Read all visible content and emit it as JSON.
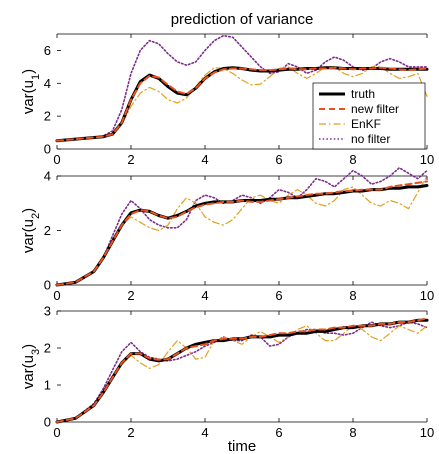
{
  "figure": {
    "title": "prediction of variance",
    "xlabel": "time"
  },
  "colors": {
    "truth": "#000000",
    "new_filter": "#e8501e",
    "enkf": "#e0a020",
    "no_filter": "#7b2d8e"
  },
  "chart_data": [
    {
      "type": "line",
      "title": "prediction of variance",
      "ylabel": "var(u",
      "ylabel_sub": "1",
      "xlabel": "",
      "xlim": [
        0,
        10
      ],
      "ylim": [
        0,
        7
      ],
      "xticks": [
        0,
        2,
        4,
        6,
        8,
        10
      ],
      "yticks": [
        0,
        2,
        4,
        6
      ],
      "legend": {
        "placement": "right",
        "entries": [
          "truth",
          "new filter",
          "EnKF",
          "no filter"
        ]
      },
      "x": [
        0,
        0.5,
        1,
        1.25,
        1.5,
        1.75,
        2,
        2.25,
        2.5,
        2.75,
        3,
        3.25,
        3.5,
        3.75,
        4,
        4.25,
        4.5,
        4.75,
        5,
        5.25,
        5.5,
        5.75,
        6,
        6.25,
        6.5,
        6.75,
        7,
        7.25,
        7.5,
        7.75,
        8,
        8.25,
        8.5,
        8.75,
        9,
        9.25,
        9.5,
        9.75,
        10
      ],
      "series": [
        {
          "name": "truth",
          "key": "truth",
          "values": [
            0.5,
            0.6,
            0.7,
            0.75,
            0.9,
            1.6,
            3.0,
            4.1,
            4.5,
            4.3,
            3.8,
            3.4,
            3.3,
            3.7,
            4.3,
            4.7,
            4.9,
            4.95,
            4.9,
            4.8,
            4.75,
            4.75,
            4.8,
            4.85,
            4.85,
            4.9,
            4.9,
            4.95,
            4.95,
            4.9,
            4.9,
            4.9,
            4.9,
            4.9,
            4.85,
            4.85,
            4.85,
            4.85,
            4.85
          ]
        },
        {
          "name": "new filter",
          "key": "new_filter",
          "values": [
            0.5,
            0.6,
            0.7,
            0.75,
            0.9,
            1.6,
            3.0,
            4.0,
            4.45,
            4.35,
            3.9,
            3.5,
            3.35,
            3.7,
            4.3,
            4.65,
            4.85,
            4.9,
            4.9,
            4.85,
            4.8,
            4.8,
            4.85,
            4.9,
            4.85,
            4.85,
            4.9,
            4.9,
            4.95,
            4.9,
            4.85,
            4.9,
            4.9,
            4.95,
            4.9,
            4.85,
            4.8,
            4.85,
            4.9
          ]
        },
        {
          "name": "EnKF",
          "key": "enkf",
          "values": [
            0.5,
            0.6,
            0.7,
            0.75,
            0.9,
            1.5,
            2.6,
            3.4,
            3.75,
            3.5,
            3.0,
            2.8,
            3.1,
            3.8,
            4.5,
            4.95,
            4.9,
            4.6,
            4.2,
            3.9,
            3.95,
            4.4,
            4.9,
            5.0,
            4.6,
            4.3,
            4.6,
            5.0,
            5.0,
            4.6,
            4.4,
            4.6,
            5.0,
            5.0,
            4.6,
            4.3,
            4.4,
            4.6,
            3.2
          ]
        },
        {
          "name": "no filter",
          "key": "no_filter",
          "values": [
            0.5,
            0.6,
            0.7,
            0.8,
            1.1,
            2.4,
            4.6,
            6.0,
            6.6,
            6.4,
            5.8,
            5.3,
            5.1,
            5.3,
            6.0,
            6.6,
            6.9,
            6.8,
            6.2,
            5.6,
            5.0,
            4.6,
            4.7,
            5.2,
            5.0,
            4.6,
            4.8,
            5.3,
            5.6,
            5.4,
            5.0,
            4.8,
            4.9,
            5.3,
            5.5,
            5.3,
            5.0,
            5.0,
            5.0
          ]
        }
      ]
    },
    {
      "type": "line",
      "ylabel": "var(u",
      "ylabel_sub": "2",
      "xlabel": "",
      "xlim": [
        0,
        10
      ],
      "ylim": [
        0,
        4
      ],
      "xticks": [
        0,
        2,
        4,
        6,
        8,
        10
      ],
      "yticks": [
        0,
        2,
        4
      ],
      "x": [
        0,
        0.5,
        1,
        1.25,
        1.5,
        1.75,
        2,
        2.25,
        2.5,
        2.75,
        3,
        3.25,
        3.5,
        3.75,
        4,
        4.25,
        4.5,
        4.75,
        5,
        5.25,
        5.5,
        5.75,
        6,
        6.25,
        6.5,
        6.75,
        7,
        7.25,
        7.5,
        7.75,
        8,
        8.25,
        8.5,
        8.75,
        9,
        9.25,
        9.5,
        9.75,
        10
      ],
      "series": [
        {
          "name": "truth",
          "key": "truth",
          "values": [
            0.0,
            0.1,
            0.5,
            1.0,
            1.6,
            2.2,
            2.65,
            2.75,
            2.7,
            2.55,
            2.45,
            2.55,
            2.7,
            2.9,
            3.0,
            3.05,
            3.05,
            3.05,
            3.1,
            3.1,
            3.1,
            3.15,
            3.15,
            3.2,
            3.2,
            3.25,
            3.3,
            3.35,
            3.35,
            3.4,
            3.45,
            3.45,
            3.5,
            3.5,
            3.55,
            3.55,
            3.6,
            3.6,
            3.65
          ]
        },
        {
          "name": "new filter",
          "key": "new_filter",
          "values": [
            0.0,
            0.1,
            0.5,
            1.0,
            1.6,
            2.2,
            2.6,
            2.75,
            2.7,
            2.55,
            2.45,
            2.5,
            2.7,
            2.85,
            2.95,
            3.0,
            3.05,
            3.05,
            3.1,
            3.05,
            3.05,
            3.1,
            3.15,
            3.2,
            3.25,
            3.3,
            3.35,
            3.35,
            3.4,
            3.45,
            3.45,
            3.5,
            3.5,
            3.5,
            3.6,
            3.65,
            3.7,
            3.75,
            3.8
          ]
        },
        {
          "name": "EnKF",
          "key": "enkf",
          "values": [
            0.0,
            0.1,
            0.5,
            1.0,
            1.6,
            2.2,
            2.5,
            2.3,
            2.1,
            2.0,
            2.2,
            2.8,
            3.2,
            3.0,
            2.5,
            2.3,
            2.2,
            2.4,
            2.8,
            3.2,
            3.3,
            3.1,
            3.0,
            3.3,
            3.5,
            3.3,
            3.0,
            2.9,
            3.1,
            3.5,
            3.6,
            3.3,
            3.0,
            2.9,
            3.1,
            3.0,
            2.8,
            3.4,
            4.0
          ]
        },
        {
          "name": "no filter",
          "key": "no_filter",
          "values": [
            0.0,
            0.1,
            0.5,
            1.0,
            1.8,
            2.6,
            3.1,
            2.8,
            2.4,
            2.2,
            2.1,
            2.1,
            2.4,
            3.1,
            3.3,
            3.2,
            3.0,
            3.1,
            3.3,
            3.2,
            3.0,
            3.2,
            3.5,
            3.4,
            3.2,
            3.5,
            3.9,
            3.8,
            3.6,
            3.9,
            4.2,
            4.0,
            3.7,
            3.8,
            4.0,
            4.3,
            4.1,
            3.9,
            4.2
          ]
        }
      ]
    },
    {
      "type": "line",
      "ylabel": "var(u",
      "ylabel_sub": "3",
      "xlabel": "time",
      "xlim": [
        0,
        10
      ],
      "ylim": [
        0,
        3
      ],
      "xticks": [
        0,
        2,
        4,
        6,
        8,
        10
      ],
      "yticks": [
        0,
        1,
        2,
        3
      ],
      "x": [
        0,
        0.5,
        1,
        1.25,
        1.5,
        1.75,
        2,
        2.25,
        2.5,
        2.75,
        3,
        3.25,
        3.5,
        3.75,
        4,
        4.25,
        4.5,
        4.75,
        5,
        5.25,
        5.5,
        5.75,
        6,
        6.25,
        6.5,
        6.75,
        7,
        7.25,
        7.5,
        7.75,
        8,
        8.25,
        8.5,
        8.75,
        9,
        9.25,
        9.5,
        9.75,
        10
      ],
      "series": [
        {
          "name": "truth",
          "key": "truth",
          "values": [
            0.0,
            0.1,
            0.45,
            0.8,
            1.2,
            1.6,
            1.85,
            1.85,
            1.7,
            1.65,
            1.7,
            1.85,
            2.0,
            2.1,
            2.15,
            2.2,
            2.2,
            2.25,
            2.25,
            2.3,
            2.3,
            2.3,
            2.35,
            2.35,
            2.4,
            2.4,
            2.45,
            2.45,
            2.5,
            2.55,
            2.55,
            2.6,
            2.6,
            2.65,
            2.65,
            2.7,
            2.7,
            2.75,
            2.75
          ]
        },
        {
          "name": "new filter",
          "key": "new_filter",
          "values": [
            0.0,
            0.1,
            0.45,
            0.8,
            1.2,
            1.6,
            1.85,
            1.85,
            1.72,
            1.68,
            1.7,
            1.85,
            2.0,
            2.05,
            2.1,
            2.2,
            2.25,
            2.25,
            2.25,
            2.3,
            2.3,
            2.35,
            2.4,
            2.4,
            2.45,
            2.45,
            2.5,
            2.5,
            2.55,
            2.55,
            2.6,
            2.6,
            2.6,
            2.65,
            2.65,
            2.7,
            2.7,
            2.75,
            2.8
          ]
        },
        {
          "name": "EnKF",
          "key": "enkf",
          "values": [
            0.0,
            0.1,
            0.45,
            0.8,
            1.2,
            1.55,
            1.8,
            1.6,
            1.45,
            1.55,
            1.9,
            2.2,
            2.0,
            1.7,
            1.75,
            2.2,
            2.3,
            2.2,
            2.1,
            2.3,
            2.45,
            2.3,
            2.15,
            2.3,
            2.5,
            2.6,
            2.4,
            2.2,
            2.2,
            2.4,
            2.6,
            2.5,
            2.3,
            2.2,
            2.4,
            2.6,
            2.5,
            2.4,
            2.6
          ]
        },
        {
          "name": "no filter",
          "key": "no_filter",
          "values": [
            0.0,
            0.1,
            0.5,
            0.9,
            1.4,
            1.9,
            2.15,
            1.9,
            1.75,
            1.7,
            1.65,
            1.7,
            1.8,
            1.9,
            2.05,
            2.15,
            2.3,
            2.2,
            2.2,
            2.35,
            2.3,
            2.05,
            2.1,
            2.3,
            2.4,
            2.5,
            2.5,
            2.4,
            2.4,
            2.35,
            2.4,
            2.55,
            2.7,
            2.6,
            2.55,
            2.6,
            2.7,
            2.65,
            2.55
          ]
        }
      ]
    }
  ]
}
